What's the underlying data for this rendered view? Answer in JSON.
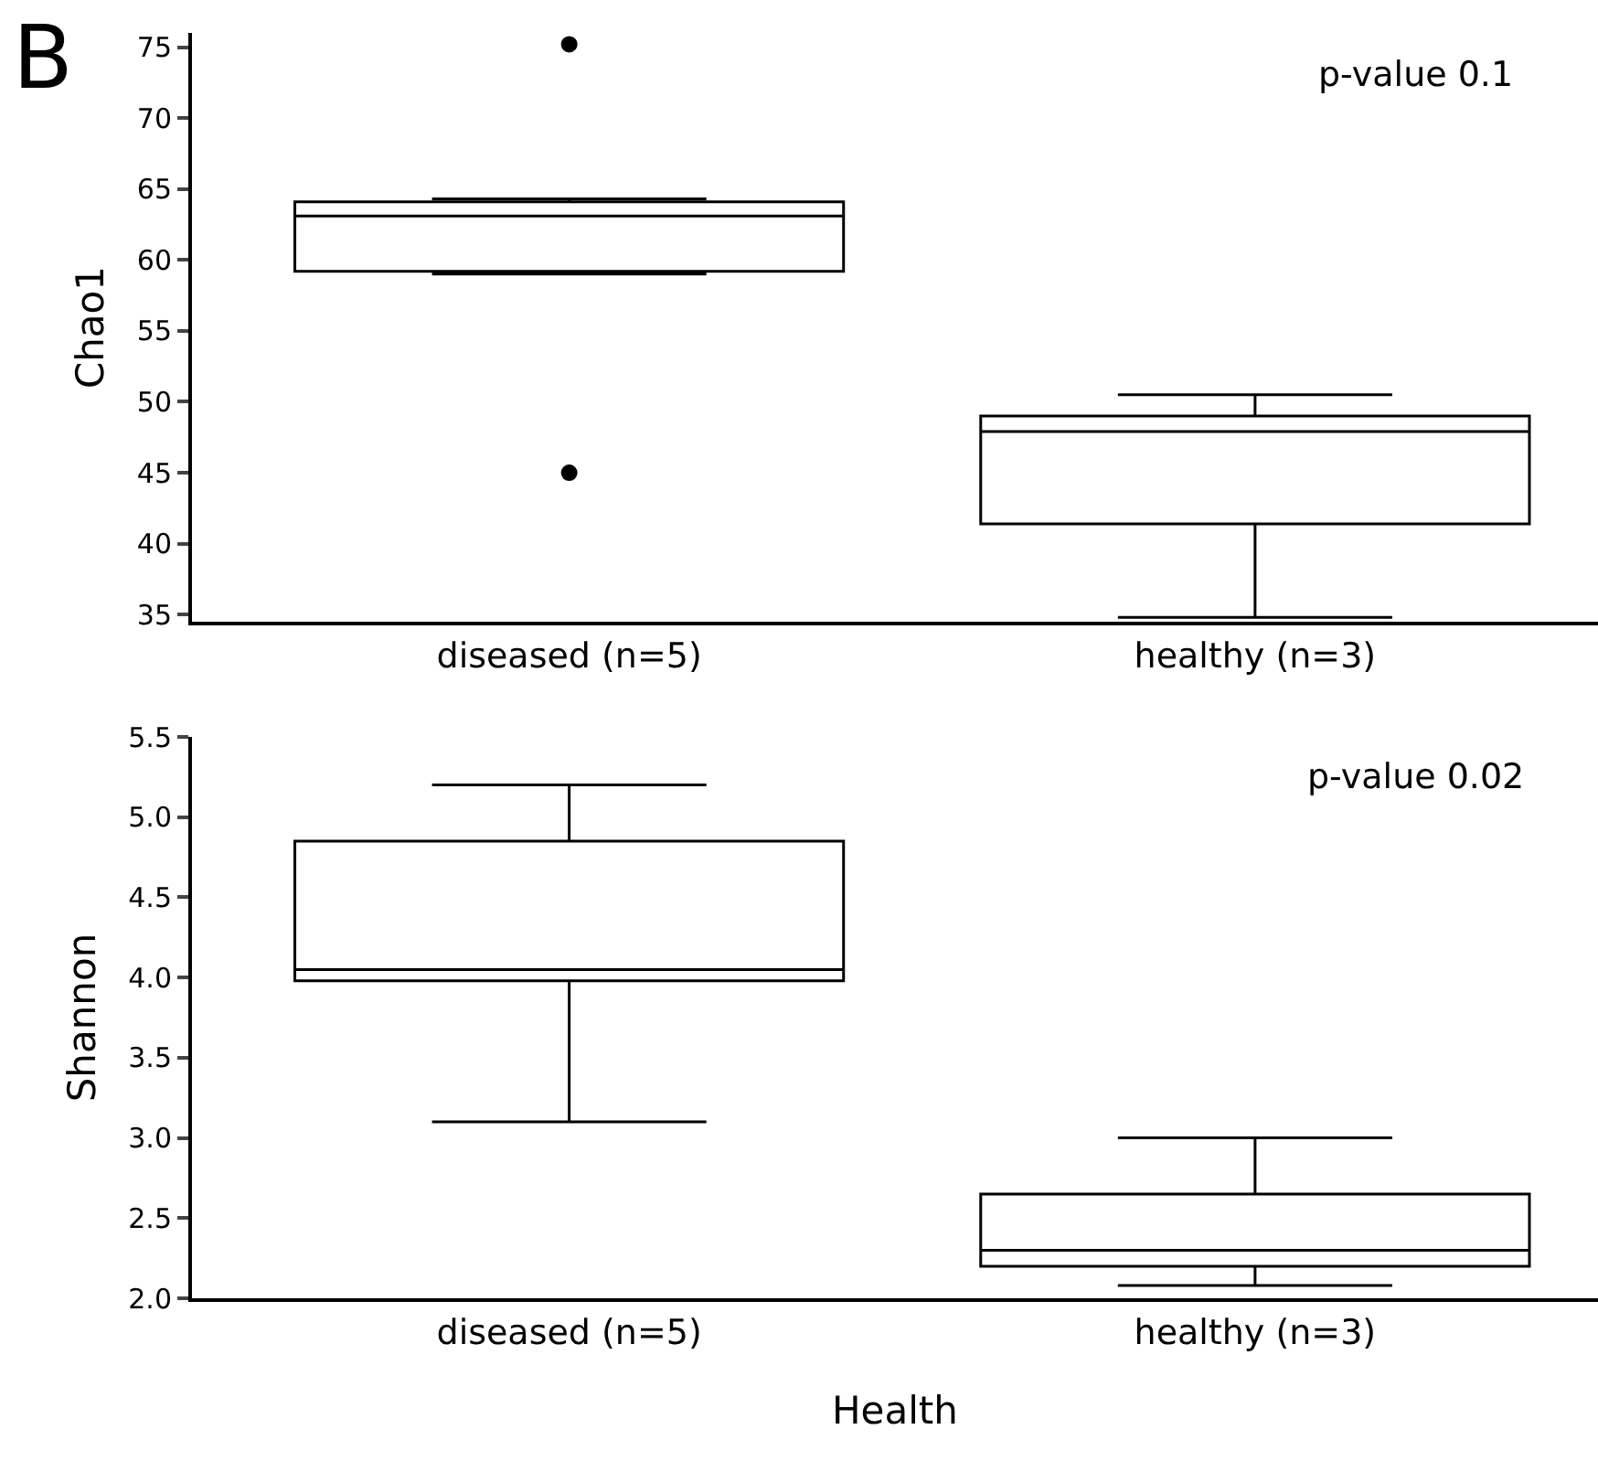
{
  "chart_data": [
    {
      "type": "box",
      "ylabel": "Chao1",
      "categories": [
        "diseased (n=5)",
        "healthy (n=3)"
      ],
      "boxes": [
        {
          "low": 59.0,
          "q1": 59.2,
          "median": 63.1,
          "q3": 64.1,
          "high": 64.3,
          "outliers": [
            75.2,
            45.0
          ]
        },
        {
          "low": 34.8,
          "q1": 41.4,
          "median": 47.9,
          "q3": 49.0,
          "high": 50.5
        }
      ],
      "color": "#000000",
      "ylim": [
        34.5,
        76
      ],
      "yticks": [
        35,
        40,
        45,
        50,
        55,
        60,
        65,
        70,
        75
      ],
      "grid": false,
      "annotations": [
        "B",
        "p-value 0.1"
      ]
    },
    {
      "type": "box",
      "ylabel": "Shannon",
      "xlabel": "Health",
      "categories": [
        "diseased (n=5)",
        "healthy (n=3)"
      ],
      "boxes": [
        {
          "low": 3.1,
          "q1": 3.98,
          "median": 4.05,
          "q3": 4.85,
          "high": 5.2
        },
        {
          "low": 2.08,
          "q1": 2.2,
          "median": 2.3,
          "q3": 2.65,
          "high": 3.0
        }
      ],
      "color": "#000000",
      "ylim": [
        2.0,
        5.5
      ],
      "yticks": [
        {
          "value": 2.0,
          "label": "2.0"
        },
        2.5,
        {
          "value": 3.0,
          "label": "3.0"
        },
        3.5,
        {
          "value": 4.0,
          "label": "4.0"
        },
        4.5,
        {
          "value": 5.0,
          "label": "5.0"
        },
        5.5
      ],
      "grid": false,
      "annotations": [
        "p-value 0.02"
      ]
    }
  ]
}
